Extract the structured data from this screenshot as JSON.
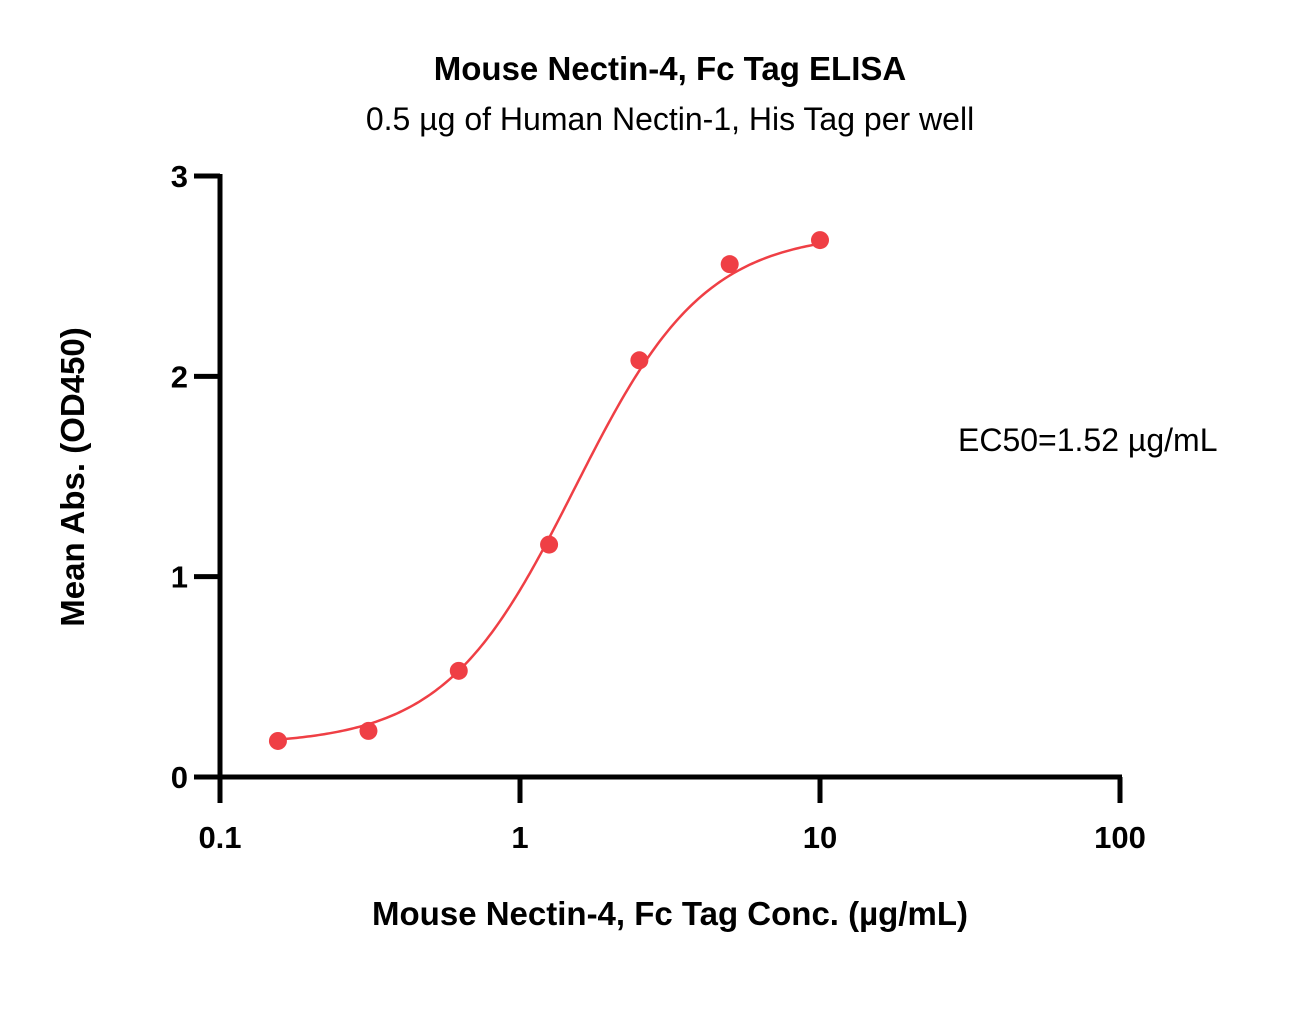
{
  "chart_data": {
    "type": "scatter",
    "title": "Mouse Nectin-4, Fc Tag ELISA",
    "subtitle": "0.5 µg of Human Nectin-1, His Tag per well",
    "xlabel": "Mouse Nectin-4, Fc Tag Conc. (µg/mL)",
    "ylabel": "Mean Abs. (OD450)",
    "xscale": "log",
    "xlim": [
      0.1,
      100
    ],
    "ylim": [
      0,
      3
    ],
    "xticks": [
      "0.1",
      "1",
      "10",
      "100"
    ],
    "yticks": [
      "0",
      "1",
      "2",
      "3"
    ],
    "grid": false,
    "color": "#ef3f45",
    "series": [
      {
        "x": [
          0.156,
          0.3125,
          0.625,
          1.25,
          2.5,
          5,
          10
        ],
        "y": [
          0.18,
          0.23,
          0.53,
          1.16,
          2.08,
          2.56,
          2.68
        ]
      }
    ],
    "fit": {
      "model": "4PL",
      "bottom": 0.16,
      "top": 2.72,
      "ec50": 1.52,
      "hill": 2.0
    },
    "annotation": "EC50=1.52 µg/mL"
  }
}
